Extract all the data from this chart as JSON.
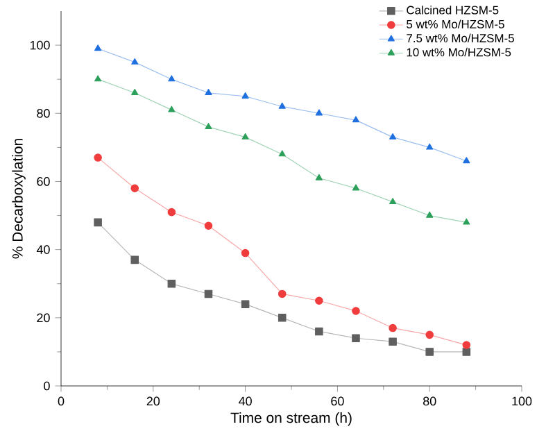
{
  "chart_data": {
    "type": "line",
    "xlabel": "Time on stream (h)",
    "ylabel": "% Decarboxylation",
    "x": [
      8,
      16,
      24,
      32,
      40,
      48,
      56,
      64,
      72,
      80,
      88
    ],
    "series": [
      {
        "name": "Calcined HZSM-5",
        "color": "#5f5f5f",
        "marker": "square",
        "values": [
          48,
          37,
          30,
          27,
          24,
          20,
          16,
          14,
          13,
          10,
          10
        ]
      },
      {
        "name": "5 wt% Mo/HZSM-5",
        "color": "#f03c3c",
        "marker": "circle",
        "values": [
          67,
          58,
          51,
          47,
          39,
          27,
          25,
          22,
          17,
          15,
          12
        ]
      },
      {
        "name": "7.5 wt% Mo/HZSM-5",
        "color": "#1f6fe0",
        "marker": "triangle",
        "values": [
          99,
          95,
          90,
          86,
          85,
          82,
          80,
          78,
          73,
          70,
          66
        ]
      },
      {
        "name": "10 wt% Mo/HZSM-5",
        "color": "#2ca05a",
        "marker": "triangle down",
        "values": [
          90,
          86,
          81,
          76,
          73,
          68,
          61,
          58,
          54,
          50,
          48
        ]
      }
    ],
    "xlim": [
      0,
      100
    ],
    "xticks": [
      0,
      20,
      40,
      60,
      80,
      100
    ],
    "ylim": [
      0,
      110
    ],
    "yticks": [
      0,
      20,
      40,
      60,
      80,
      100
    ],
    "legend": "top right",
    "grid": false,
    "line_style": "solid"
  }
}
